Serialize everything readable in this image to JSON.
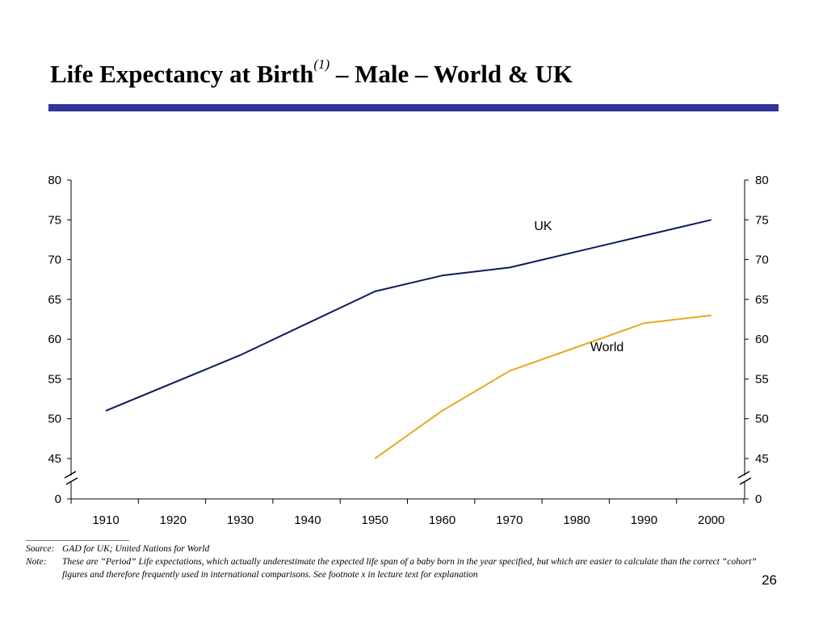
{
  "slide": {
    "title_main": "Life Expectancy at Birth",
    "title_sup": "(1)",
    "title_rest": " – Male – World & UK",
    "accent_color": "#333399",
    "page_number": "26"
  },
  "footer": {
    "source_label": "Source:",
    "source_text": "GAD for UK; United Nations for World",
    "note_label": "Note:",
    "note_text": "These are “Period” Life expectations, which actually underestimate the expected life span of a baby born in the year specified, but which are easier to calculate than the correct “cohort” figures and therefore frequently used in international comparisons. See footnote x in lecture text for explanation"
  },
  "chart_data": {
    "type": "line",
    "x": [
      1910,
      1920,
      1930,
      1940,
      1950,
      1960,
      1970,
      1980,
      1990,
      2000
    ],
    "x_tick_labels": [
      "1910",
      "1920",
      "1930",
      "1940",
      "1950",
      "1960",
      "1970",
      "1980",
      "1990",
      "2000"
    ],
    "y_tick_labels": [
      "0",
      "45",
      "50",
      "55",
      "60",
      "65",
      "70",
      "75",
      "80"
    ],
    "y_ticks": [
      45,
      50,
      55,
      60,
      65,
      70,
      75,
      80
    ],
    "ylim": [
      45,
      80
    ],
    "y_axis_break": true,
    "dual_y_axis": true,
    "grid": false,
    "series": [
      {
        "name": "UK",
        "color": "#0d1a5a",
        "x": [
          1910,
          1930,
          1950,
          1960,
          1970,
          1980,
          1990,
          2000
        ],
        "values": [
          51,
          58,
          66,
          68,
          69,
          71,
          73,
          75
        ]
      },
      {
        "name": "World",
        "color": "#e8a820",
        "x": [
          1950,
          1960,
          1970,
          1980,
          1990,
          2000
        ],
        "values": [
          45,
          51,
          56,
          59,
          62,
          63
        ]
      }
    ]
  }
}
